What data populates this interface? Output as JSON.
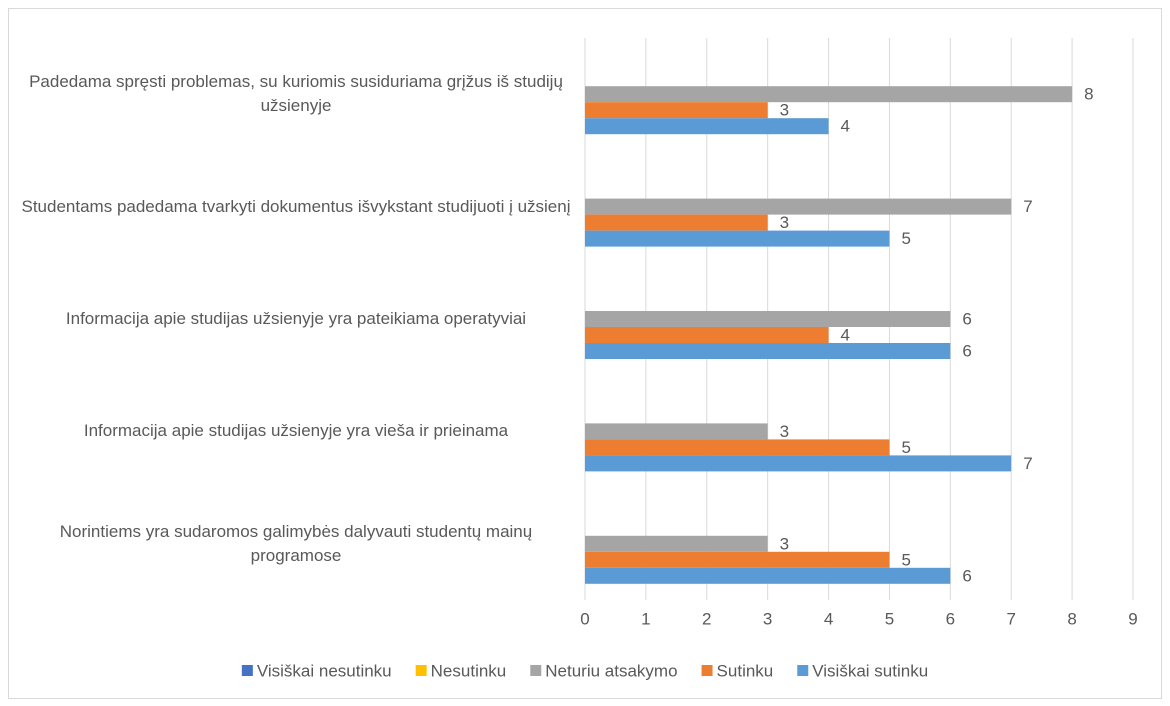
{
  "chart_data": {
    "type": "bar",
    "orientation": "horizontal",
    "categories": [
      "Padedama spręsti problemas, su kuriomis susiduriama grįžus iš studijų užsienyje",
      "Studentams padedama tvarkyti dokumentus išvykstant studijuoti į užsienį",
      "Informacija apie studijas užsienyje yra pateikiama operatyviai",
      "Informacija apie studijas užsienyje yra vieša ir prieinama",
      "Norintiems yra sudaromos galimybės dalyvauti studentų mainų programose"
    ],
    "series": [
      {
        "name": "Visiškai nesutinku",
        "color": "#4472c4",
        "values": [
          null,
          null,
          null,
          null,
          null
        ]
      },
      {
        "name": "Nesutinku",
        "color": "#ffc000",
        "values": [
          null,
          null,
          null,
          null,
          null
        ]
      },
      {
        "name": "Neturiu atsakymo",
        "color": "#a5a5a5",
        "values": [
          8,
          7,
          6,
          3,
          3
        ]
      },
      {
        "name": "Sutinku",
        "color": "#ed7d31",
        "values": [
          3,
          3,
          4,
          5,
          5
        ]
      },
      {
        "name": "Visiškai sutinku",
        "color": "#5b9bd5",
        "values": [
          4,
          5,
          6,
          7,
          6
        ]
      }
    ],
    "xlim": [
      0,
      9
    ],
    "xticks": [
      0,
      1,
      2,
      3,
      4,
      5,
      6,
      7,
      8,
      9
    ],
    "grid": true,
    "legend": "bottom"
  }
}
